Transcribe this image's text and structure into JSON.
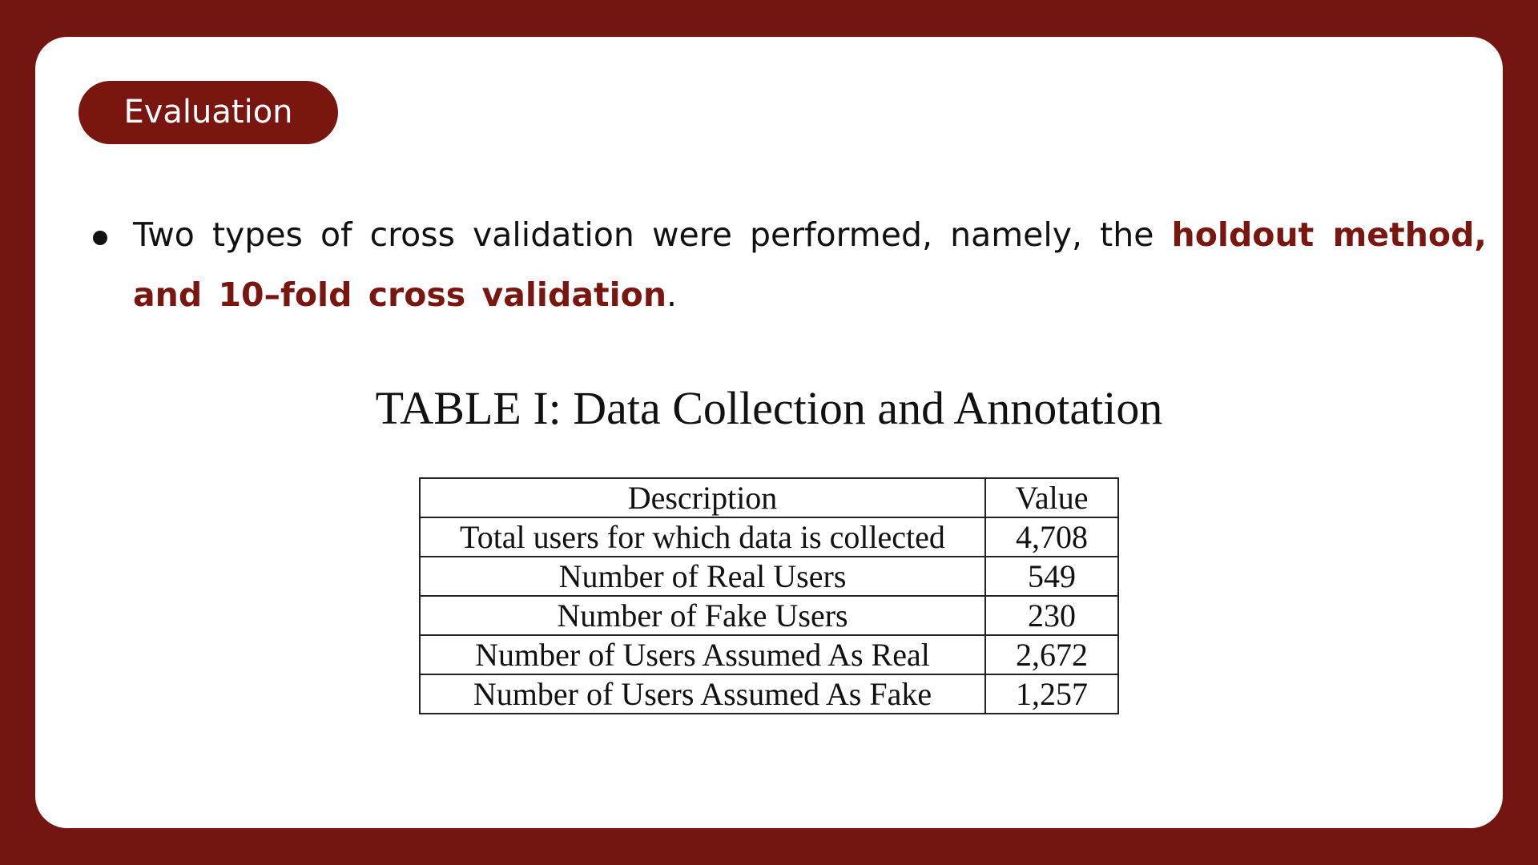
{
  "section_label": "Evaluation",
  "bullet": {
    "text_before": "Two types of cross validation were performed, namely, the ",
    "highlight": "holdout method, and 10–fold cross validation",
    "text_after": "."
  },
  "table": {
    "caption": "TABLE I: Data Collection and Annotation",
    "headers": {
      "description": "Description",
      "value": "Value"
    },
    "rows": [
      {
        "description": "Total users for which data is collected",
        "value": "4,708"
      },
      {
        "description": "Number of Real Users",
        "value": "549"
      },
      {
        "description": "Number of Fake Users",
        "value": "230"
      },
      {
        "description": "Number of Users Assumed As Real",
        "value": "2,672"
      },
      {
        "description": "Number of Users Assumed As Fake",
        "value": "1,257"
      }
    ]
  },
  "colors": {
    "frame": "#731510",
    "accent": "#7a1610",
    "card": "#ffffff"
  }
}
